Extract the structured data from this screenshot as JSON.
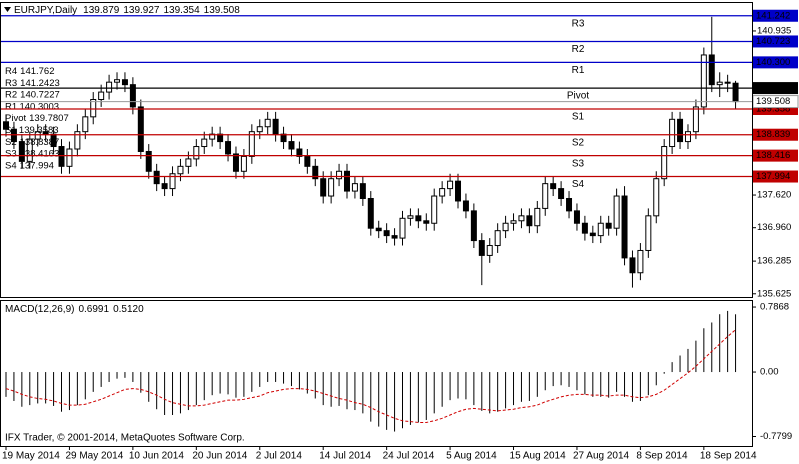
{
  "chart_data": [
    {
      "type": "candlestick",
      "title": "EURJPY,Daily",
      "categories": [
        "19 May 2014",
        null,
        null,
        null,
        null,
        null,
        null,
        null,
        "29 May 2014",
        null,
        null,
        null,
        null,
        null,
        null,
        null,
        "10 Jun 2014",
        null,
        null,
        null,
        null,
        null,
        null,
        null,
        "20 Jun 2014",
        null,
        null,
        null,
        null,
        null,
        null,
        null,
        "2 Jul 2014",
        null,
        null,
        null,
        null,
        null,
        null,
        null,
        "14 Jul 2014",
        null,
        null,
        null,
        null,
        null,
        null,
        null,
        "24 Jul 2014",
        null,
        null,
        null,
        null,
        null,
        null,
        null,
        "5 Aug 2014",
        null,
        null,
        null,
        null,
        null,
        null,
        null,
        "15 Aug 2014",
        null,
        null,
        null,
        null,
        null,
        null,
        null,
        "27 Aug 2014",
        null,
        null,
        null,
        null,
        null,
        null,
        null,
        "8 Sep 2014",
        null,
        null,
        null,
        null,
        null,
        null,
        null,
        "18 Sep 2014",
        null,
        null,
        null,
        null
      ],
      "open": [
        139.1,
        138.95,
        138.7,
        138.3,
        138.75,
        138.9,
        138.85,
        138.6,
        138.2,
        138.55,
        138.9,
        139.2,
        139.55,
        139.7,
        139.9,
        139.95,
        139.85,
        139.4,
        138.5,
        138.1,
        137.85,
        137.75,
        138.05,
        138.2,
        138.35,
        138.6,
        138.75,
        138.85,
        138.7,
        138.45,
        138.1,
        138.4,
        138.9,
        139.0,
        139.15,
        138.85,
        138.7,
        138.55,
        138.4,
        138.2,
        137.95,
        137.6,
        137.95,
        138.1,
        137.7,
        137.85,
        137.55,
        136.95,
        136.9,
        136.8,
        136.75,
        137.15,
        137.2,
        137.1,
        137.05,
        137.6,
        137.75,
        137.9,
        137.5,
        137.3,
        136.7,
        136.4,
        136.6,
        136.9,
        137.05,
        137.1,
        137.2,
        137.0,
        137.35,
        137.85,
        137.75,
        137.55,
        137.3,
        137.05,
        136.85,
        136.8,
        137.05,
        136.95,
        137.6,
        136.35,
        136.05,
        136.5,
        137.2,
        137.95,
        138.6,
        139.15,
        138.7,
        138.9,
        139.4,
        140.45,
        139.85,
        139.9,
        139.879
      ],
      "high": [
        139.25,
        139.1,
        138.85,
        138.9,
        139.05,
        139.05,
        139.0,
        138.75,
        138.7,
        139.05,
        139.35,
        139.7,
        139.85,
        140.05,
        140.1,
        140.1,
        140.0,
        139.55,
        138.65,
        138.25,
        138.0,
        138.2,
        138.35,
        138.5,
        138.75,
        138.9,
        139.0,
        139.0,
        138.85,
        138.6,
        138.55,
        139.05,
        139.15,
        139.3,
        139.3,
        139.0,
        138.85,
        138.7,
        138.55,
        138.35,
        138.1,
        138.1,
        138.25,
        138.25,
        138.0,
        138.0,
        137.7,
        137.1,
        137.05,
        136.95,
        137.3,
        137.35,
        137.35,
        137.25,
        137.75,
        137.9,
        138.05,
        138.05,
        137.65,
        137.45,
        136.85,
        136.75,
        137.05,
        137.2,
        137.25,
        137.35,
        137.35,
        137.5,
        138.0,
        138.0,
        137.9,
        137.7,
        137.45,
        137.2,
        137.0,
        137.2,
        137.2,
        137.75,
        137.8,
        136.5,
        136.65,
        137.35,
        138.1,
        138.75,
        139.3,
        139.3,
        139.05,
        139.55,
        140.6,
        141.22,
        140.1,
        140.05,
        139.927
      ],
      "low": [
        138.8,
        138.55,
        138.15,
        138.15,
        138.6,
        138.7,
        138.45,
        138.05,
        138.05,
        138.4,
        138.75,
        139.05,
        139.4,
        139.55,
        139.75,
        139.7,
        139.25,
        138.35,
        137.95,
        137.7,
        137.6,
        137.6,
        137.9,
        138.05,
        138.2,
        138.45,
        138.6,
        138.55,
        138.3,
        137.95,
        137.95,
        138.25,
        138.75,
        138.85,
        138.7,
        138.55,
        138.4,
        138.25,
        138.05,
        137.8,
        137.45,
        137.45,
        137.8,
        137.55,
        137.55,
        137.4,
        136.8,
        136.75,
        136.65,
        136.6,
        136.6,
        137.0,
        136.95,
        136.9,
        136.9,
        137.45,
        137.6,
        137.35,
        137.15,
        136.55,
        135.8,
        136.25,
        136.45,
        136.75,
        136.9,
        136.95,
        136.85,
        136.85,
        137.2,
        137.6,
        137.4,
        137.15,
        136.9,
        136.7,
        136.65,
        136.65,
        136.8,
        136.8,
        136.2,
        135.75,
        135.9,
        136.35,
        137.05,
        137.8,
        138.45,
        138.55,
        138.55,
        138.75,
        139.25,
        139.7,
        139.6,
        139.7,
        139.354
      ],
      "close": [
        138.95,
        138.7,
        138.3,
        138.75,
        138.9,
        138.85,
        138.6,
        138.2,
        138.55,
        138.9,
        139.2,
        139.55,
        139.7,
        139.9,
        139.95,
        139.85,
        139.4,
        138.5,
        138.1,
        137.85,
        137.75,
        138.05,
        138.2,
        138.35,
        138.6,
        138.75,
        138.85,
        138.7,
        138.45,
        138.1,
        138.4,
        138.9,
        139.0,
        139.15,
        138.85,
        138.7,
        138.55,
        138.4,
        138.2,
        137.95,
        137.6,
        137.95,
        138.1,
        137.7,
        137.85,
        137.55,
        136.95,
        136.9,
        136.8,
        136.75,
        137.15,
        137.2,
        137.1,
        137.05,
        137.6,
        137.75,
        137.9,
        137.5,
        137.3,
        136.7,
        136.4,
        136.6,
        136.9,
        137.05,
        137.1,
        137.2,
        137.0,
        137.35,
        137.85,
        137.75,
        137.55,
        137.3,
        137.05,
        136.85,
        136.8,
        137.05,
        136.95,
        137.6,
        136.35,
        136.05,
        136.5,
        137.2,
        137.95,
        138.6,
        139.15,
        138.7,
        138.9,
        139.4,
        140.45,
        139.85,
        139.9,
        139.879,
        139.508
      ],
      "bull_color": "#ffffff",
      "bear_color": "#000000",
      "wick_color": "#000000",
      "ylim": [
        135.56,
        141.52
      ],
      "yticks": [
        140.935,
        {
          "value": 137.62,
          "label": "137.620"
        },
        {
          "value": 136.96,
          "label": "136.960"
        },
        136.285,
        135.625
      ],
      "label_color": "#c00000",
      "levels": [
        {
          "name": "R4",
          "value": 141.762,
          "color": "#0000c8"
        },
        {
          "name": "R3",
          "value": 141.2423,
          "value_label": "141.242",
          "color": "#0000c8"
        },
        {
          "name": "R2",
          "value": 140.7227,
          "value_label": "140.723",
          "color": "#0000c8"
        },
        {
          "name": "R1",
          "value": 140.3003,
          "value_label": "140.300",
          "color": "#0000c8"
        },
        {
          "name": "Pivot",
          "value": 139.7807,
          "value_label": "139.781",
          "color": "#000000"
        },
        {
          "name": "S1",
          "value": 139.3583,
          "value_label": "139.358",
          "color": "#c00000"
        },
        {
          "name": "S2",
          "value": 138.8387,
          "value_label": "138.839",
          "color": "#c00000"
        },
        {
          "name": "S3",
          "value": 138.4163,
          "value_label": "138.416",
          "color": "#c00000"
        },
        {
          "name": "S4",
          "value": 137.994,
          "value_label": "137.994",
          "color": "#c00000"
        }
      ]
    },
    {
      "type": "macd",
      "title": "MACD(12,26,9)",
      "annotation": "IFX Trader, © 2001-2014, MetaQuotes Software Corp.",
      "histogram": {
        "color": "#000000",
        "values": [
          -0.3,
          -0.35,
          -0.42,
          -0.4,
          -0.38,
          -0.38,
          -0.41,
          -0.48,
          -0.46,
          -0.4,
          -0.33,
          -0.24,
          -0.18,
          -0.12,
          -0.08,
          -0.07,
          -0.12,
          -0.25,
          -0.36,
          -0.45,
          -0.52,
          -0.52,
          -0.5,
          -0.46,
          -0.4,
          -0.34,
          -0.28,
          -0.26,
          -0.27,
          -0.31,
          -0.3,
          -0.24,
          -0.18,
          -0.12,
          -0.12,
          -0.14,
          -0.17,
          -0.21,
          -0.26,
          -0.32,
          -0.4,
          -0.42,
          -0.41,
          -0.45,
          -0.46,
          -0.5,
          -0.6,
          -0.66,
          -0.7,
          -0.72,
          -0.68,
          -0.64,
          -0.61,
          -0.58,
          -0.5,
          -0.42,
          -0.34,
          -0.32,
          -0.33,
          -0.4,
          -0.47,
          -0.5,
          -0.48,
          -0.44,
          -0.4,
          -0.36,
          -0.35,
          -0.3,
          -0.22,
          -0.17,
          -0.16,
          -0.18,
          -0.22,
          -0.27,
          -0.3,
          -0.3,
          -0.31,
          -0.24,
          -0.3,
          -0.36,
          -0.35,
          -0.28,
          -0.16,
          -0.02,
          0.12,
          0.2,
          0.28,
          0.38,
          0.53,
          0.6,
          0.7,
          0.74,
          0.6991
        ]
      },
      "signal": {
        "color": "#d00000",
        "values": [
          -0.2,
          -0.23,
          -0.27,
          -0.3,
          -0.32,
          -0.33,
          -0.35,
          -0.38,
          -0.4,
          -0.4,
          -0.39,
          -0.36,
          -0.33,
          -0.29,
          -0.25,
          -0.21,
          -0.2,
          -0.21,
          -0.24,
          -0.28,
          -0.33,
          -0.37,
          -0.39,
          -0.41,
          -0.41,
          -0.4,
          -0.38,
          -0.36,
          -0.34,
          -0.34,
          -0.33,
          -0.31,
          -0.29,
          -0.25,
          -0.23,
          -0.21,
          -0.2,
          -0.2,
          -0.21,
          -0.23,
          -0.26,
          -0.29,
          -0.32,
          -0.34,
          -0.37,
          -0.39,
          -0.43,
          -0.48,
          -0.52,
          -0.56,
          -0.59,
          -0.6,
          -0.61,
          -0.61,
          -0.59,
          -0.56,
          -0.52,
          -0.48,
          -0.45,
          -0.44,
          -0.45,
          -0.46,
          -0.47,
          -0.46,
          -0.45,
          -0.43,
          -0.42,
          -0.4,
          -0.36,
          -0.33,
          -0.3,
          -0.28,
          -0.27,
          -0.27,
          -0.28,
          -0.28,
          -0.29,
          -0.28,
          -0.28,
          -0.3,
          -0.31,
          -0.3,
          -0.27,
          -0.22,
          -0.15,
          -0.08,
          -0.01,
          0.07,
          0.16,
          0.25,
          0.34,
          0.43,
          0.512
        ],
        "value_labels": {
          "92": "0.5120"
        }
      },
      "ylim": [
        -0.895,
        0.872
      ],
      "yticks": [
        0.7868,
        {
          "value": 0,
          "label": "0.00"
        },
        -0.7799
      ]
    }
  ]
}
